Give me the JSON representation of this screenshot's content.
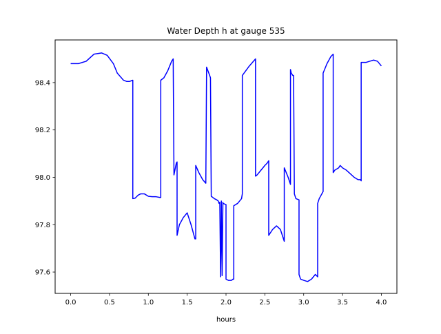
{
  "chart_data": {
    "type": "line",
    "title": "Water Depth h at gauge 535",
    "xlabel": "hours",
    "ylabel": "",
    "xlim": [
      -0.2,
      4.2
    ],
    "ylim": [
      97.51,
      98.58
    ],
    "xticks": [
      0.0,
      0.5,
      1.0,
      1.5,
      2.0,
      2.5,
      3.0,
      3.5,
      4.0
    ],
    "xtick_labels": [
      "0.0",
      "0.5",
      "1.0",
      "1.5",
      "2.0",
      "2.5",
      "3.0",
      "3.5",
      "4.0"
    ],
    "yticks": [
      97.6,
      97.8,
      98.0,
      98.2,
      98.4
    ],
    "ytick_labels": [
      "97.6",
      "97.8",
      "98.0",
      "98.2",
      "98.4"
    ],
    "grid": false,
    "legend": "none",
    "color": "#0000ff",
    "series": [
      {
        "x": [
          0.0,
          0.1,
          0.2,
          0.3,
          0.4,
          0.47,
          0.55,
          0.6,
          0.68,
          0.72,
          0.76,
          0.8,
          0.8,
          0.83,
          0.87,
          0.9,
          0.95,
          1.0,
          1.05,
          1.1,
          1.15,
          1.16,
          1.16,
          1.2,
          1.25,
          1.3,
          1.32,
          1.33,
          1.36,
          1.37,
          1.37,
          1.4,
          1.45,
          1.5,
          1.55,
          1.6,
          1.61,
          1.61,
          1.65,
          1.7,
          1.74,
          1.75,
          1.79,
          1.8,
          1.81,
          1.85,
          1.88,
          1.9,
          1.91,
          1.92,
          1.93,
          1.94,
          1.95,
          1.96,
          1.96,
          2.0,
          2.0,
          2.03,
          2.07,
          2.09,
          2.1,
          2.1,
          2.15,
          2.2,
          2.21,
          2.21,
          2.3,
          2.38,
          2.38,
          2.4,
          2.45,
          2.5,
          2.53,
          2.55,
          2.55,
          2.6,
          2.65,
          2.7,
          2.75,
          2.75,
          2.8,
          2.83,
          2.83,
          2.84,
          2.86,
          2.87,
          2.88,
          2.9,
          2.94,
          2.94,
          2.96,
          3.0,
          3.05,
          3.1,
          3.15,
          3.18,
          3.18,
          3.2,
          3.25,
          3.25,
          3.3,
          3.35,
          3.38,
          3.38,
          3.4,
          3.45,
          3.47,
          3.5,
          3.55,
          3.6,
          3.65,
          3.7,
          3.73,
          3.74,
          3.74,
          3.8,
          3.85,
          3.9,
          3.95,
          4.0
        ],
        "y": [
          98.48,
          98.48,
          98.49,
          98.52,
          98.525,
          98.515,
          98.48,
          98.44,
          98.41,
          98.405,
          98.405,
          98.41,
          97.91,
          97.912,
          97.925,
          97.93,
          97.93,
          97.92,
          97.918,
          97.918,
          97.915,
          97.915,
          98.41,
          98.42,
          98.45,
          98.49,
          98.5,
          98.01,
          98.06,
          98.065,
          97.755,
          97.8,
          97.83,
          97.85,
          97.8,
          97.74,
          97.74,
          98.05,
          98.02,
          97.99,
          97.975,
          98.465,
          98.43,
          98.42,
          97.92,
          97.91,
          97.905,
          97.9,
          97.89,
          97.895,
          97.58,
          97.9,
          97.585,
          97.895,
          97.89,
          97.885,
          97.57,
          97.565,
          97.565,
          97.57,
          97.57,
          97.88,
          97.89,
          97.91,
          97.93,
          98.43,
          98.47,
          98.5,
          98.005,
          98.01,
          98.03,
          98.05,
          98.06,
          98.07,
          97.755,
          97.78,
          97.795,
          97.78,
          97.73,
          98.04,
          98.0,
          97.97,
          98.455,
          98.44,
          98.43,
          98.43,
          97.93,
          97.91,
          97.905,
          97.59,
          97.57,
          97.565,
          97.56,
          97.57,
          97.59,
          97.58,
          97.89,
          97.91,
          97.94,
          98.44,
          98.48,
          98.51,
          98.52,
          98.02,
          98.03,
          98.04,
          98.05,
          98.04,
          98.03,
          98.015,
          98.0,
          97.99,
          97.99,
          97.985,
          98.485,
          98.485,
          98.49,
          98.495,
          98.49,
          98.47
        ]
      }
    ]
  }
}
